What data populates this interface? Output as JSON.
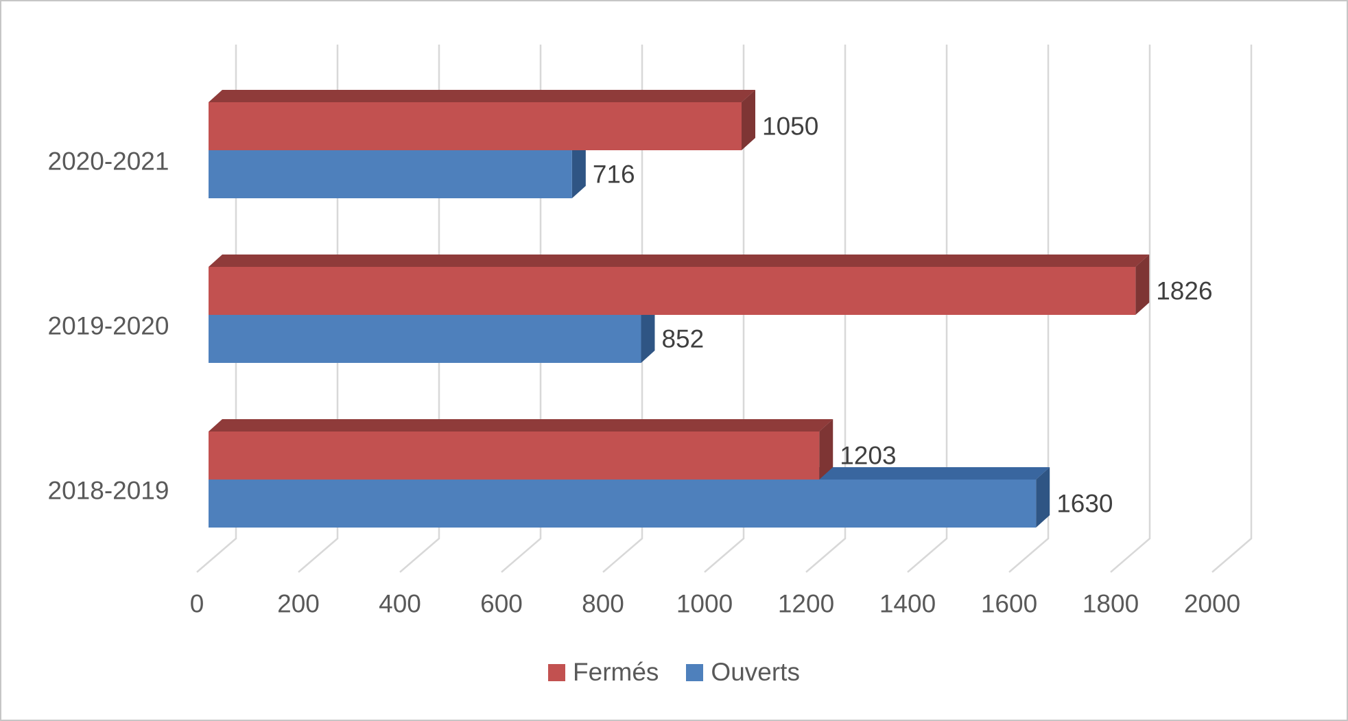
{
  "chart_data": {
    "type": "bar",
    "orientation": "horizontal",
    "style": "3d",
    "title": "",
    "xlabel": "",
    "ylabel": "",
    "categories": [
      "2020-2021",
      "2019-2020",
      "2018-2019"
    ],
    "series": [
      {
        "name": "Fermés",
        "values": [
          1050,
          1826,
          1203
        ],
        "color_front": "#C25150",
        "color_top": "#8F3B3A",
        "color_side": "#7E3534"
      },
      {
        "name": "Ouverts",
        "values": [
          716,
          852,
          1630
        ],
        "color_front": "#4E80BC",
        "color_top": "#39669F",
        "color_side": "#2F5584"
      }
    ],
    "xlim": [
      0,
      2000
    ],
    "x_ticks": [
      0,
      200,
      400,
      600,
      800,
      1000,
      1200,
      1400,
      1600,
      1800,
      2000
    ],
    "grid": true,
    "data_labels": true,
    "legend_position": "bottom"
  },
  "colors": {
    "background": "#FFFFFF",
    "frame_border": "#C6C6C6",
    "gridline": "#D8D8D8",
    "axis_text": "#595959",
    "value_text": "#3F3F3F"
  }
}
